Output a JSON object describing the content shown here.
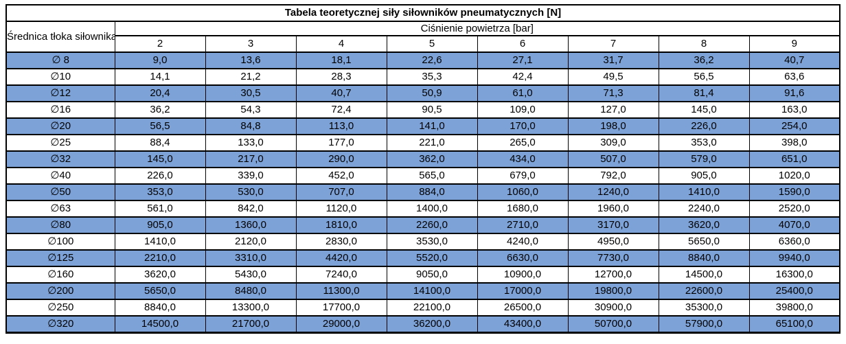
{
  "page": {
    "background_color": "#FFFFFF",
    "text_color": "#000000",
    "accent_row_color": "#7CA2D8",
    "border_color": "#000000"
  },
  "chart_data": {
    "type": "table",
    "title": "Tabela teoretycznej siły siłowników pneumatycznych [N]",
    "row_axis_label": "Średnica tłoka siłownika",
    "column_axis_label": "Ciśnienie powietrza [bar]",
    "columns": [
      "2",
      "3",
      "4",
      "5",
      "6",
      "7",
      "8",
      "9"
    ],
    "rows": [
      {
        "label": "∅ 8",
        "values": [
          "9,0",
          "13,6",
          "18,1",
          "22,6",
          "27,1",
          "31,7",
          "36,2",
          "40,7"
        ]
      },
      {
        "label": "∅10",
        "values": [
          "14,1",
          "21,2",
          "28,3",
          "35,3",
          "42,4",
          "49,5",
          "56,5",
          "63,6"
        ]
      },
      {
        "label": "∅12",
        "values": [
          "20,4",
          "30,5",
          "40,7",
          "50,9",
          "61,0",
          "71,3",
          "81,4",
          "91,6"
        ]
      },
      {
        "label": "∅16",
        "values": [
          "36,2",
          "54,3",
          "72,4",
          "90,5",
          "109,0",
          "127,0",
          "145,0",
          "163,0"
        ]
      },
      {
        "label": "∅20",
        "values": [
          "56,5",
          "84,8",
          "113,0",
          "141,0",
          "170,0",
          "198,0",
          "226,0",
          "254,0"
        ]
      },
      {
        "label": "∅25",
        "values": [
          "88,4",
          "133,0",
          "177,0",
          "221,0",
          "265,0",
          "309,0",
          "353,0",
          "398,0"
        ]
      },
      {
        "label": "∅32",
        "values": [
          "145,0",
          "217,0",
          "290,0",
          "362,0",
          "434,0",
          "507,0",
          "579,0",
          "651,0"
        ]
      },
      {
        "label": "∅40",
        "values": [
          "226,0",
          "339,0",
          "452,0",
          "565,0",
          "679,0",
          "792,0",
          "905,0",
          "1020,0"
        ]
      },
      {
        "label": "∅50",
        "values": [
          "353,0",
          "530,0",
          "707,0",
          "884,0",
          "1060,0",
          "1240,0",
          "1410,0",
          "1590,0"
        ]
      },
      {
        "label": "∅63",
        "values": [
          "561,0",
          "842,0",
          "1120,0",
          "1400,0",
          "1680,0",
          "1960,0",
          "2240,0",
          "2520,0"
        ]
      },
      {
        "label": "∅80",
        "values": [
          "905,0",
          "1360,0",
          "1810,0",
          "2260,0",
          "2710,0",
          "3170,0",
          "3620,0",
          "4070,0"
        ]
      },
      {
        "label": "∅100",
        "values": [
          "1410,0",
          "2120,0",
          "2830,0",
          "3530,0",
          "4240,0",
          "4950,0",
          "5650,0",
          "6360,0"
        ]
      },
      {
        "label": "∅125",
        "values": [
          "2210,0",
          "3310,0",
          "4420,0",
          "5520,0",
          "6630,0",
          "7730,0",
          "8840,0",
          "9940,0"
        ]
      },
      {
        "label": "∅160",
        "values": [
          "3620,0",
          "5430,0",
          "7240,0",
          "9050,0",
          "10900,0",
          "12700,0",
          "14500,0",
          "16300,0"
        ]
      },
      {
        "label": "∅200",
        "values": [
          "5650,0",
          "8480,0",
          "11300,0",
          "14100,0",
          "17000,0",
          "19800,0",
          "22600,0",
          "25400,0"
        ]
      },
      {
        "label": "∅250",
        "values": [
          "8840,0",
          "13300,0",
          "17700,0",
          "22100,0",
          "26500,0",
          "30900,0",
          "35300,0",
          "39800,0"
        ]
      },
      {
        "label": "∅320",
        "values": [
          "14500,0",
          "21700,0",
          "29000,0",
          "36200,0",
          "43400,0",
          "50700,0",
          "57900,0",
          "65100,0"
        ]
      }
    ]
  }
}
